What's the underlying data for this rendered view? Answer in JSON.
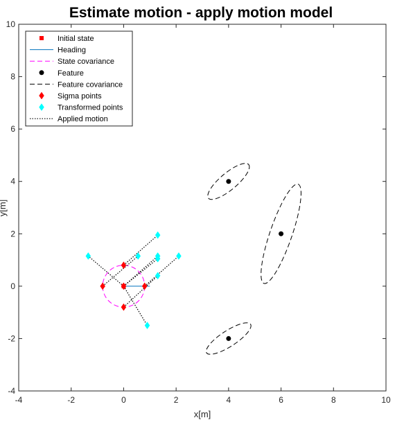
{
  "chart_data": {
    "type": "scatter",
    "title": "Estimate motion - apply motion model",
    "xlabel": "x[m]",
    "ylabel": "y[m]",
    "xlim": [
      -4,
      10
    ],
    "ylim": [
      -4,
      10
    ],
    "xticks": [
      -4,
      -2,
      0,
      2,
      4,
      6,
      8,
      10
    ],
    "yticks": [
      -4,
      -2,
      0,
      2,
      4,
      6,
      8,
      10
    ],
    "grid": false,
    "legend_position": "top-left",
    "legend": [
      {
        "label": "Initial state",
        "style": "square-marker",
        "color": "#ff0000"
      },
      {
        "label": "Heading",
        "style": "solid-line",
        "color": "#0072bd"
      },
      {
        "label": "State covariance",
        "style": "dashed-line",
        "color": "#ff00ff"
      },
      {
        "label": "Feature",
        "style": "circle-marker",
        "color": "#000000"
      },
      {
        "label": "Feature covariance",
        "style": "dashed-line",
        "color": "#000000"
      },
      {
        "label": "Sigma points",
        "style": "diamond-marker",
        "color": "#ff0000"
      },
      {
        "label": "Transformed points",
        "style": "diamond-marker",
        "color": "#00ffff"
      },
      {
        "label": "Applied motion",
        "style": "dotted-line",
        "color": "#000000"
      }
    ],
    "initial_state": {
      "x": 0,
      "y": 0
    },
    "heading": {
      "from": [
        0,
        0
      ],
      "to": [
        1,
        0
      ]
    },
    "state_covariance": {
      "cx": 0,
      "cy": 0,
      "rx": 0.8,
      "ry": 0.8,
      "angle_deg": 0
    },
    "features": [
      {
        "x": 4,
        "y": 4
      },
      {
        "x": 6,
        "y": 2
      },
      {
        "x": 4,
        "y": -2
      }
    ],
    "feature_covariances": [
      {
        "cx": 4,
        "cy": 4,
        "rx": 1.0,
        "ry": 0.32,
        "angle_deg": 40
      },
      {
        "cx": 6,
        "cy": 2,
        "rx": 2.0,
        "ry": 0.42,
        "angle_deg": 71
      },
      {
        "cx": 4,
        "cy": -2,
        "rx": 1.0,
        "ry": 0.3,
        "angle_deg": 33
      }
    ],
    "sigma_points": [
      {
        "x": 0,
        "y": 0
      },
      {
        "x": 0.8,
        "y": 0
      },
      {
        "x": -0.8,
        "y": 0
      },
      {
        "x": 0,
        "y": 0.8
      },
      {
        "x": 0,
        "y": -0.8
      }
    ],
    "transformed_points": [
      {
        "x": 1.3,
        "y": 1.15
      },
      {
        "x": 2.1,
        "y": 1.15
      },
      {
        "x": 0.55,
        "y": 1.15
      },
      {
        "x": 1.3,
        "y": 1.95
      },
      {
        "x": 1.3,
        "y": 0.4
      },
      {
        "x": 1.3,
        "y": 1.05
      },
      {
        "x": -1.35,
        "y": 1.15
      },
      {
        "x": 0.9,
        "y": -1.5
      }
    ],
    "applied_motion": [
      {
        "from": [
          0,
          0
        ],
        "to": [
          1.3,
          1.15
        ]
      },
      {
        "from": [
          0.8,
          0
        ],
        "to": [
          2.1,
          1.15
        ]
      },
      {
        "from": [
          -0.8,
          0
        ],
        "to": [
          0.55,
          1.15
        ]
      },
      {
        "from": [
          0,
          0.8
        ],
        "to": [
          1.3,
          1.95
        ]
      },
      {
        "from": [
          0,
          -0.8
        ],
        "to": [
          1.3,
          0.4
        ]
      },
      {
        "from": [
          0,
          0
        ],
        "to": [
          1.3,
          1.05
        ]
      },
      {
        "from": [
          0,
          0
        ],
        "to": [
          -1.35,
          1.15
        ]
      },
      {
        "from": [
          0,
          0
        ],
        "to": [
          0.9,
          -1.5
        ]
      }
    ]
  }
}
